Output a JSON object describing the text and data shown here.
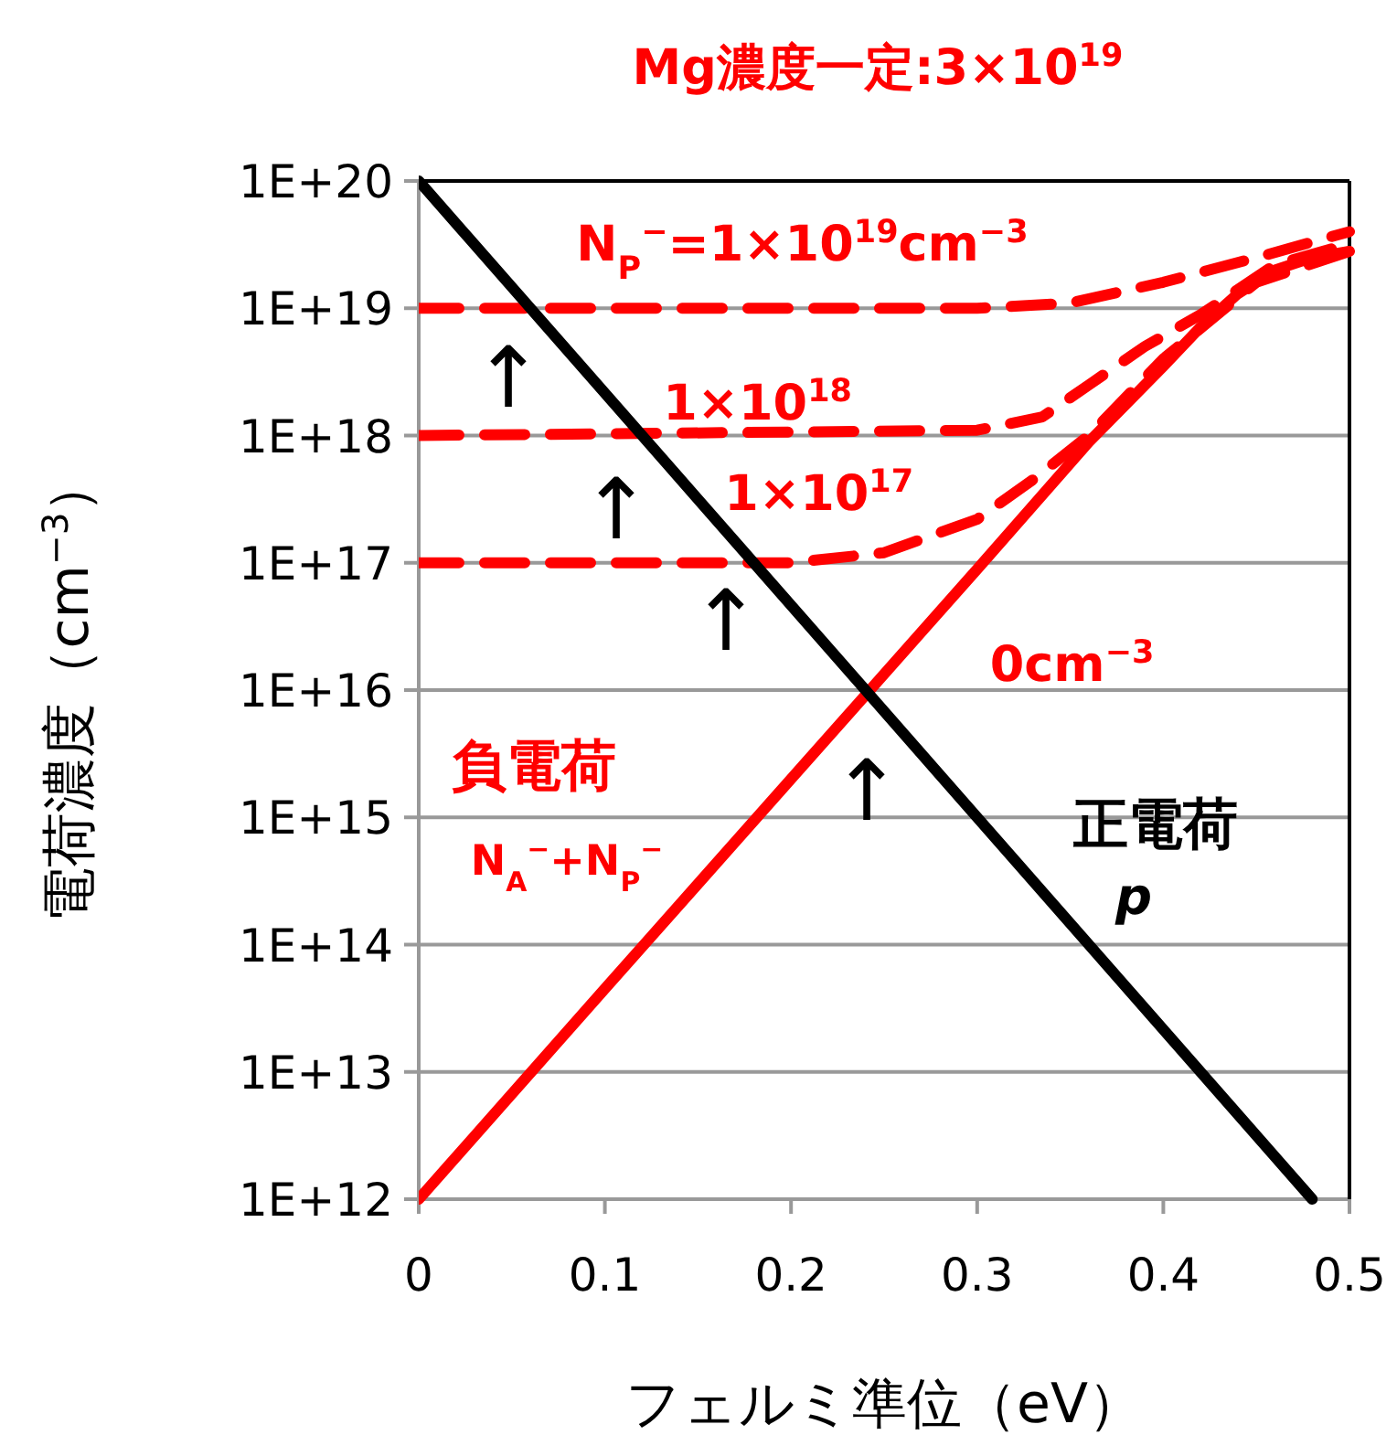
{
  "chart_data": {
    "type": "line",
    "title": "Mg濃度一定:3×10$^{19}$",
    "xlabel": "フェルミ準位（eV）",
    "ylabel": "電荷濃度（cm$^{−3}$）",
    "log": "y",
    "xlim": [
      0,
      0.5
    ],
    "ylim": [
      1000000000000.0,
      1e+20
    ],
    "xticks": [
      0,
      0.1,
      0.2,
      0.3,
      0.4,
      0.5
    ],
    "yticks": [
      {
        "value": 1000000000000.0,
        "label": "1E+12"
      },
      {
        "value": 10000000000000.0,
        "label": "1E+13"
      },
      {
        "value": 100000000000000.0,
        "label": "1E+14"
      },
      {
        "value": 1000000000000000.0,
        "label": "1E+15"
      },
      {
        "value": 1e+16,
        "label": "1E+16"
      },
      {
        "value": 1e+17,
        "label": "1E+17"
      },
      {
        "value": 1e+18,
        "label": "1E+18"
      },
      {
        "value": 1e+19,
        "label": "1E+19"
      },
      {
        "value": 1e+20,
        "label": "1E+20"
      }
    ],
    "grid": "y",
    "series": [
      {
        "name": "N$_{P}$$^{−}$=1×10$^{19}$cm$^{−3}$",
        "color": "#ff0000",
        "line_style": "dashed",
        "x": [
          0,
          0.3,
          0.35,
          0.4,
          0.45,
          0.5
        ],
        "values": [
          1e+19,
          1e+19,
          1.1e+19,
          1.6e+19,
          2.5e+19,
          4e+19
        ]
      },
      {
        "name": "1×10$^{18}$",
        "color": "#ff0000",
        "line_style": "dashed",
        "x": [
          0,
          0.3,
          0.335,
          0.36,
          0.39,
          0.42,
          0.46,
          0.5
        ],
        "values": [
          1e+18,
          1.1e+18,
          1.4e+18,
          2.5e+18,
          5e+18,
          8.9e+18,
          2.2e+19,
          3.2e+19
        ]
      },
      {
        "name": "1×10$^{17}$",
        "color": "#ff0000",
        "line_style": "dashed",
        "x": [
          0,
          0.2,
          0.25,
          0.3,
          0.33,
          0.36,
          0.4,
          0.45,
          0.5
        ],
        "values": [
          1e+17,
          1e+17,
          1.2e+17,
          2.2e+17,
          4.5e+17,
          1e+18,
          4e+18,
          1.6e+19,
          2.8e+19
        ]
      },
      {
        "name": "0cm$^{−3}$",
        "color": "#ff0000",
        "line_style": "solid",
        "x": [
          0,
          0.1,
          0.2,
          0.3,
          0.36,
          0.4,
          0.42,
          0.44,
          0.46,
          0.48,
          0.5
        ],
        "values": [
          1000000000000.0,
          45000000000000.0,
          2000000000000000.0,
          8.9e+16,
          8.9e+17,
          3.5e+18,
          7.1e+18,
          1.3e+19,
          2e+19,
          2.5e+19,
          2.8e+19
        ]
      },
      {
        "color": "#000000",
        "line_style": "solid",
        "x": [
          0,
          0.48
        ],
        "values": [
          1e+20,
          1000000000000.0
        ]
      }
    ],
    "annotations": [
      "負電荷",
      "N$_{A}$$^{−}$+N$_{P}$$^{−}$",
      "正電荷",
      "p",
      "↑",
      "↑",
      "↑",
      "↑"
    ]
  }
}
